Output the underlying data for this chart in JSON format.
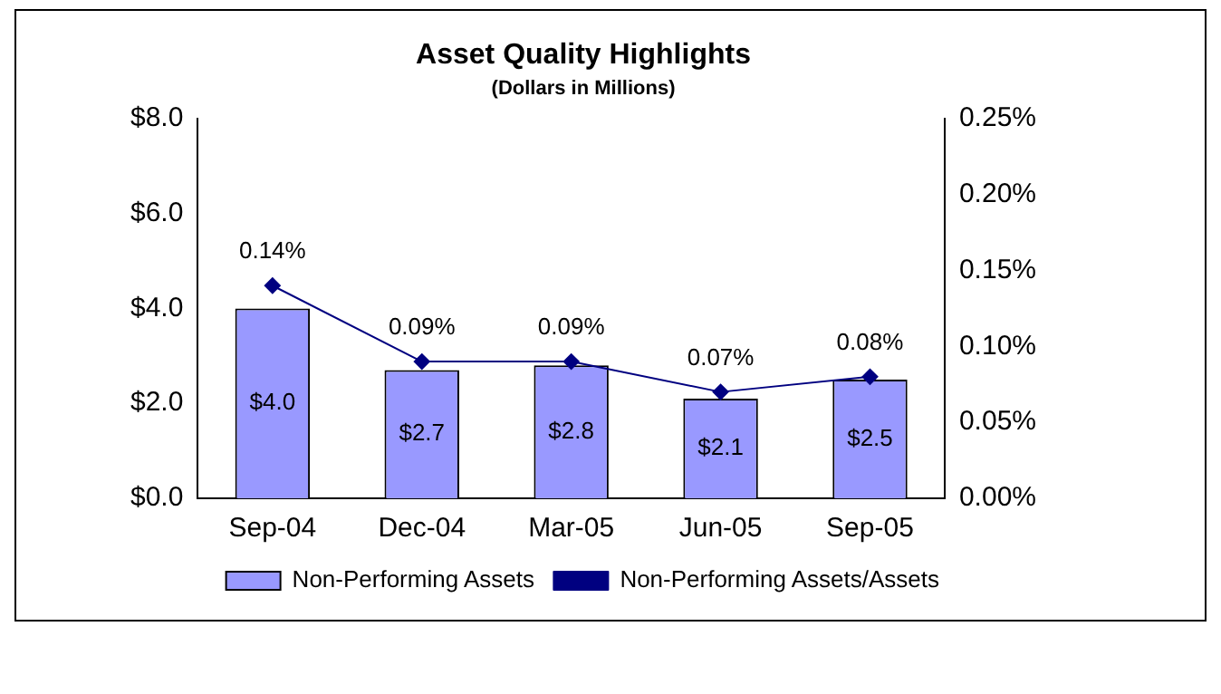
{
  "chart_data": {
    "type": "bar",
    "title": "Asset Quality Highlights",
    "subtitle": "(Dollars in Millions)",
    "categories": [
      "Sep-04",
      "Dec-04",
      "Mar-05",
      "Jun-05",
      "Sep-05"
    ],
    "series": [
      {
        "name": "Non-Performing Assets",
        "color": "#9999ff",
        "values": [
          4.0,
          2.7,
          2.8,
          2.1,
          2.5
        ],
        "value_labels": [
          "$4.0",
          "$2.7",
          "$2.8",
          "$2.1",
          "$2.5"
        ]
      },
      {
        "name": "Non-Performing Assets/Assets",
        "type": "line",
        "axis": "y2",
        "color": "#000080",
        "marker": "diamond",
        "values": [
          0.14,
          0.09,
          0.09,
          0.07,
          0.08
        ],
        "value_labels": [
          "0.14%",
          "0.09%",
          "0.09%",
          "0.07%",
          "0.08%"
        ]
      }
    ],
    "ylim": [
      0,
      8
    ],
    "yticks": [
      {
        "value": 0,
        "label": "$0.0"
      },
      {
        "value": 2,
        "label": "$2.0"
      },
      {
        "value": 4,
        "label": "$4.0"
      },
      {
        "value": 6,
        "label": "$6.0"
      },
      {
        "value": 8,
        "label": "$8.0"
      }
    ],
    "y2lim": [
      0,
      0.25
    ],
    "y2ticks": [
      {
        "value": 0,
        "label": "0.00%"
      },
      {
        "value": 0.05,
        "label": "0.05%"
      },
      {
        "value": 0.1,
        "label": "0.10%"
      },
      {
        "value": 0.15,
        "label": "0.15%"
      },
      {
        "value": 0.2,
        "label": "0.20%"
      },
      {
        "value": 0.25,
        "label": "0.25%"
      }
    ],
    "legend": "bottom"
  }
}
